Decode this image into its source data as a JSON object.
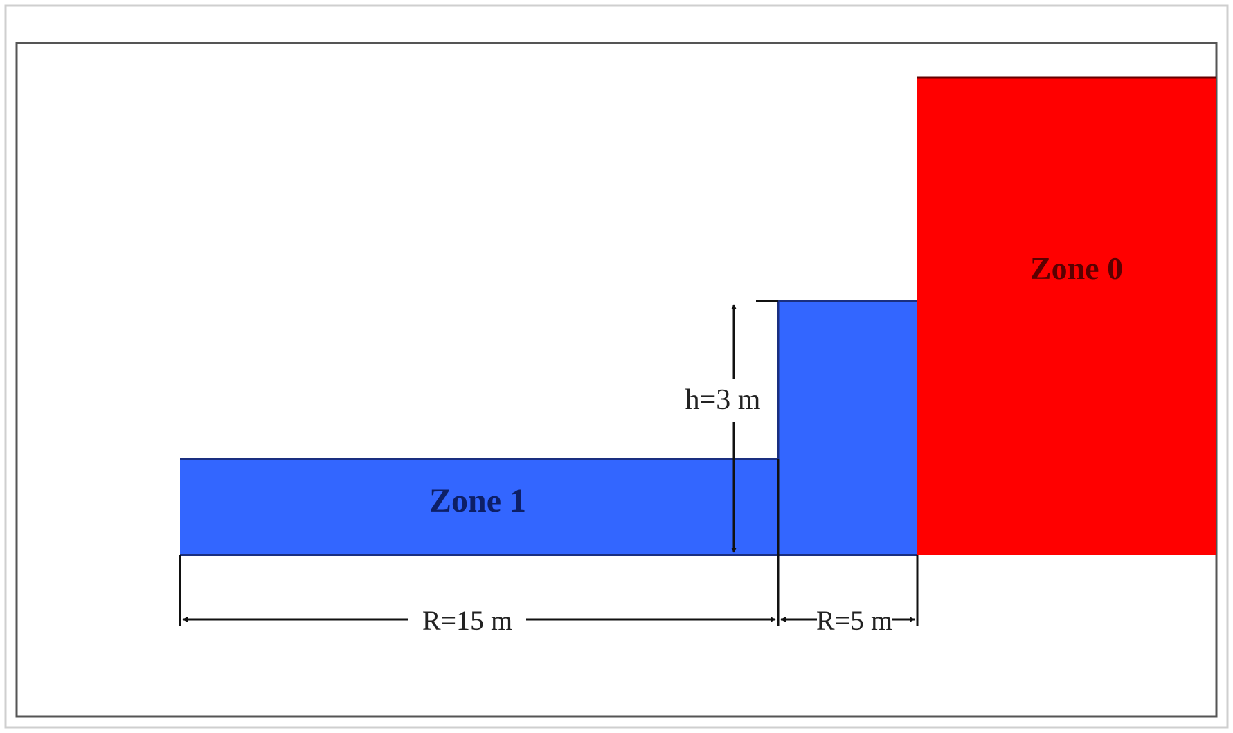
{
  "zones": {
    "zone0": {
      "label": "Zone 0",
      "color": "#ff0000",
      "label_color": "#5a0000"
    },
    "zone1": {
      "label": "Zone 1",
      "color": "#3366ff",
      "label_color": "#0d1f66"
    }
  },
  "dimensions": {
    "height": "h=3 m",
    "radius_outer": "R=15 m",
    "radius_inner": "R=5 m"
  },
  "colors": {
    "frame": "#555555",
    "outer_frame": "#cfcfcf",
    "dimension_line": "#111111"
  }
}
